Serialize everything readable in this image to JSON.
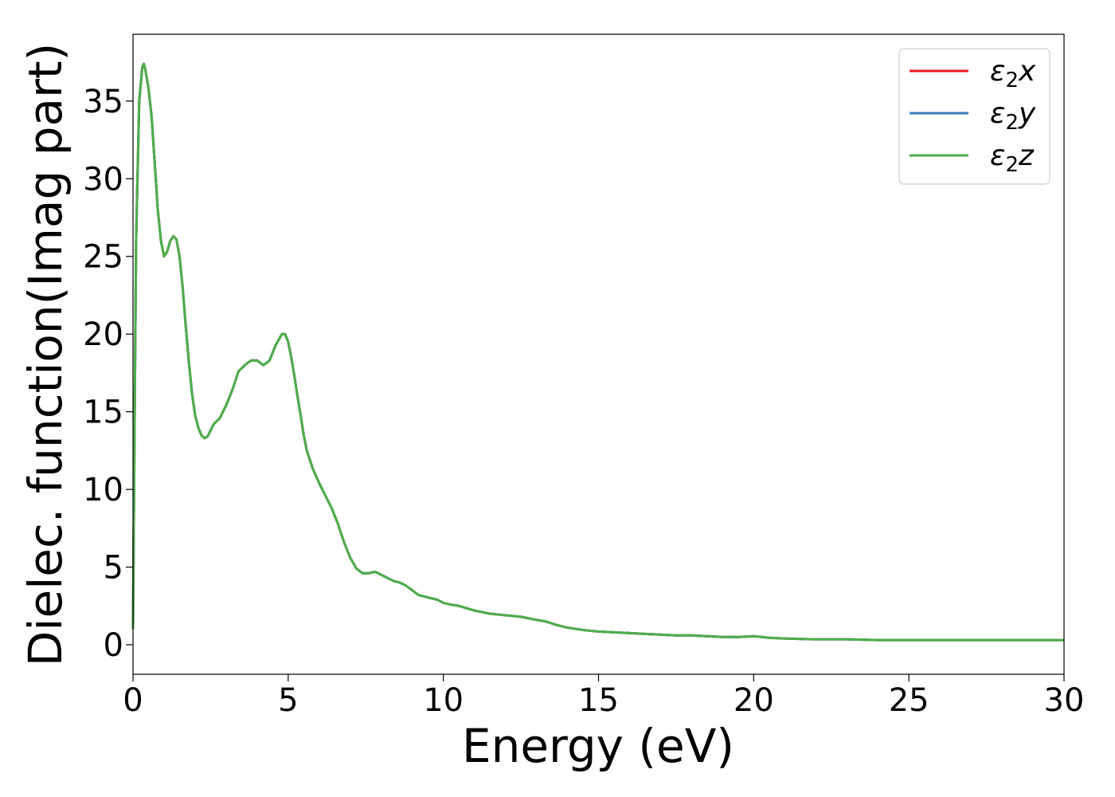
{
  "chart_data": {
    "type": "line",
    "title": "",
    "xlabel": "Energy (eV)",
    "ylabel": "Dielec. function(Imag part)",
    "xlim": [
      0,
      30
    ],
    "ylim": [
      -1.9,
      39.3
    ],
    "xticks": [
      0,
      5,
      10,
      15,
      20,
      25,
      30
    ],
    "xtick_labels": [
      "0",
      "5",
      "10",
      "15",
      "20",
      "25",
      "30"
    ],
    "yticks": [
      0,
      5,
      10,
      15,
      20,
      25,
      30,
      35
    ],
    "ytick_labels": [
      "0",
      "5",
      "10",
      "15",
      "20",
      "25",
      "30",
      "35"
    ],
    "grid": false,
    "legend_position": "top-right",
    "x": [
      0,
      0.05,
      0.1,
      0.2,
      0.3,
      0.35,
      0.4,
      0.5,
      0.6,
      0.7,
      0.8,
      0.9,
      1.0,
      1.1,
      1.2,
      1.3,
      1.4,
      1.5,
      1.6,
      1.7,
      1.8,
      1.9,
      2.0,
      2.1,
      2.2,
      2.3,
      2.4,
      2.5,
      2.6,
      2.7,
      2.8,
      3.0,
      3.2,
      3.4,
      3.6,
      3.8,
      4.0,
      4.2,
      4.4,
      4.6,
      4.8,
      4.9,
      5.0,
      5.1,
      5.2,
      5.3,
      5.4,
      5.5,
      5.6,
      5.8,
      6.0,
      6.2,
      6.4,
      6.6,
      6.8,
      7.0,
      7.2,
      7.4,
      7.6,
      7.8,
      8.0,
      8.2,
      8.4,
      8.6,
      8.8,
      9.0,
      9.2,
      9.4,
      9.6,
      9.8,
      10.0,
      10.2,
      10.5,
      11.0,
      11.5,
      12.0,
      12.5,
      13.0,
      13.3,
      13.6,
      14.0,
      14.5,
      15.0,
      15.5,
      16.0,
      16.5,
      17.0,
      17.5,
      18.0,
      18.5,
      19.0,
      19.5,
      20.0,
      20.5,
      21.0,
      22.0,
      23.0,
      24.0,
      25.0,
      26.0,
      27.0,
      28.0,
      29.0,
      30.0
    ],
    "series": [
      {
        "name": "ε₂x",
        "color": "#e41a1c",
        "values": [
          1.0,
          14.0,
          26.0,
          35.0,
          37.2,
          37.4,
          37.0,
          35.8,
          34.0,
          31.0,
          28.0,
          26.0,
          25.0,
          25.3,
          26.0,
          26.3,
          26.1,
          25.0,
          23.0,
          20.5,
          18.2,
          16.2,
          14.8,
          14.0,
          13.5,
          13.3,
          13.4,
          13.8,
          14.2,
          14.4,
          14.6,
          15.4,
          16.4,
          17.6,
          18.0,
          18.3,
          18.3,
          18.0,
          18.3,
          19.3,
          20.0,
          20.0,
          19.5,
          18.5,
          17.3,
          16.0,
          14.8,
          13.5,
          12.5,
          11.3,
          10.4,
          9.6,
          8.8,
          7.8,
          6.6,
          5.6,
          4.9,
          4.6,
          4.6,
          4.7,
          4.5,
          4.3,
          4.1,
          4.0,
          3.8,
          3.5,
          3.2,
          3.1,
          3.0,
          2.9,
          2.7,
          2.6,
          2.5,
          2.2,
          2.0,
          1.9,
          1.8,
          1.6,
          1.5,
          1.3,
          1.1,
          0.95,
          0.85,
          0.8,
          0.75,
          0.7,
          0.65,
          0.6,
          0.6,
          0.55,
          0.5,
          0.5,
          0.55,
          0.45,
          0.4,
          0.35,
          0.35,
          0.3,
          0.3,
          0.3,
          0.3,
          0.3,
          0.3,
          0.3
        ]
      },
      {
        "name": "ε₂y",
        "color": "#377eb8",
        "values": [
          1.0,
          14.0,
          26.0,
          35.0,
          37.2,
          37.4,
          37.0,
          35.8,
          34.0,
          31.0,
          28.0,
          26.0,
          25.0,
          25.3,
          26.0,
          26.3,
          26.1,
          25.0,
          23.0,
          20.5,
          18.2,
          16.2,
          14.8,
          14.0,
          13.5,
          13.3,
          13.4,
          13.8,
          14.2,
          14.4,
          14.6,
          15.4,
          16.4,
          17.6,
          18.0,
          18.3,
          18.3,
          18.0,
          18.3,
          19.3,
          20.0,
          20.0,
          19.5,
          18.5,
          17.3,
          16.0,
          14.8,
          13.5,
          12.5,
          11.3,
          10.4,
          9.6,
          8.8,
          7.8,
          6.6,
          5.6,
          4.9,
          4.6,
          4.6,
          4.7,
          4.5,
          4.3,
          4.1,
          4.0,
          3.8,
          3.5,
          3.2,
          3.1,
          3.0,
          2.9,
          2.7,
          2.6,
          2.5,
          2.2,
          2.0,
          1.9,
          1.8,
          1.6,
          1.5,
          1.3,
          1.1,
          0.95,
          0.85,
          0.8,
          0.75,
          0.7,
          0.65,
          0.6,
          0.6,
          0.55,
          0.5,
          0.5,
          0.55,
          0.45,
          0.4,
          0.35,
          0.35,
          0.3,
          0.3,
          0.3,
          0.3,
          0.3,
          0.3,
          0.3
        ]
      },
      {
        "name": "ε₂z",
        "color": "#4daf4a",
        "values": [
          1.0,
          14.0,
          26.0,
          35.0,
          37.2,
          37.4,
          37.0,
          35.8,
          34.0,
          31.0,
          28.0,
          26.0,
          25.0,
          25.3,
          26.0,
          26.3,
          26.1,
          25.0,
          23.0,
          20.5,
          18.2,
          16.2,
          14.8,
          14.0,
          13.5,
          13.3,
          13.4,
          13.8,
          14.2,
          14.4,
          14.6,
          15.4,
          16.4,
          17.6,
          18.0,
          18.3,
          18.3,
          18.0,
          18.3,
          19.3,
          20.0,
          20.0,
          19.5,
          18.5,
          17.3,
          16.0,
          14.8,
          13.5,
          12.5,
          11.3,
          10.4,
          9.6,
          8.8,
          7.8,
          6.6,
          5.6,
          4.9,
          4.6,
          4.6,
          4.7,
          4.5,
          4.3,
          4.1,
          4.0,
          3.8,
          3.5,
          3.2,
          3.1,
          3.0,
          2.9,
          2.7,
          2.6,
          2.5,
          2.2,
          2.0,
          1.9,
          1.8,
          1.6,
          1.5,
          1.3,
          1.1,
          0.95,
          0.85,
          0.8,
          0.75,
          0.7,
          0.65,
          0.6,
          0.6,
          0.55,
          0.5,
          0.5,
          0.55,
          0.45,
          0.4,
          0.35,
          0.35,
          0.3,
          0.3,
          0.3,
          0.3,
          0.3,
          0.3,
          0.3
        ]
      }
    ],
    "legend": {
      "entries": [
        {
          "symbol": "ε",
          "sub": "2",
          "axis": "x"
        },
        {
          "symbol": "ε",
          "sub": "2",
          "axis": "y"
        },
        {
          "symbol": "ε",
          "sub": "2",
          "axis": "z"
        }
      ]
    }
  }
}
